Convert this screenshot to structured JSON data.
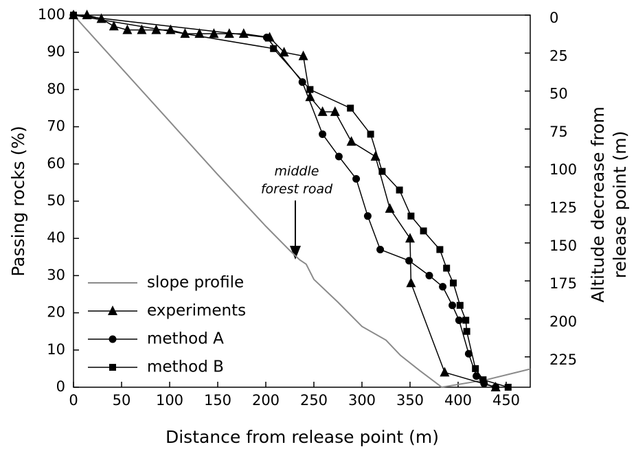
{
  "chart_data": {
    "type": "line",
    "xlabel": "Distance from release point (m)",
    "ylabel": "Passing rocks (%)",
    "y2label": [
      "Altitude decrease from",
      "release point (m)"
    ],
    "annotation": [
      "middle",
      "forest road"
    ],
    "xlim": [
      0,
      475
    ],
    "xticks": [
      0,
      50,
      100,
      150,
      200,
      250,
      300,
      350,
      400,
      450
    ],
    "ylim": [
      0,
      100
    ],
    "yticks": [
      0,
      10,
      20,
      30,
      40,
      50,
      60,
      70,
      80,
      90,
      100
    ],
    "y2lim": [
      245,
      0
    ],
    "y2ticks": [
      0,
      25,
      50,
      75,
      100,
      125,
      150,
      175,
      200,
      225
    ],
    "legend": "lower left",
    "series": [
      {
        "name": "slope profile",
        "color": "#8a8a8a",
        "marker": "none",
        "axis": "y2",
        "x": [
          0,
          50,
          100,
          150,
          200,
          225,
          235,
          242,
          250,
          275,
          300,
          325,
          340,
          360,
          383,
          430,
          475
        ],
        "values": [
          0,
          35,
          70,
          105,
          139,
          155,
          161,
          164,
          174,
          189,
          205,
          214,
          224,
          234,
          245,
          240,
          233
        ]
      },
      {
        "name": "experiments",
        "color": "#000000",
        "marker": "triangle",
        "x": [
          0,
          14,
          29,
          42,
          56,
          71,
          86,
          101,
          116,
          131,
          146,
          162,
          177,
          204,
          219,
          239,
          246,
          259,
          272,
          289,
          314,
          329,
          350,
          351,
          386,
          439
        ],
        "values": [
          100,
          100,
          99,
          97,
          96,
          96,
          96,
          96,
          95,
          95,
          95,
          95,
          95,
          94,
          90,
          89,
          78,
          74,
          74,
          66,
          62,
          48,
          40,
          28,
          4,
          0
        ]
      },
      {
        "name": "method A",
        "color": "#000000",
        "marker": "circle",
        "x": [
          0,
          201,
          238,
          259,
          276,
          294,
          306,
          319,
          349,
          370,
          384,
          394,
          401,
          411,
          419,
          427,
          439
        ],
        "values": [
          100,
          94,
          82,
          68,
          62,
          56,
          46,
          37,
          34,
          30,
          27,
          22,
          18,
          9,
          3,
          1,
          0
        ]
      },
      {
        "name": "method B",
        "color": "#000000",
        "marker": "square",
        "x": [
          0,
          208,
          246,
          288,
          309,
          321,
          339,
          351,
          364,
          381,
          388,
          395,
          402,
          408,
          409,
          418,
          426,
          452
        ],
        "values": [
          100,
          91,
          80,
          75,
          68,
          58,
          53,
          46,
          42,
          37,
          32,
          28,
          22,
          18,
          15,
          5,
          2,
          0
        ]
      }
    ]
  }
}
